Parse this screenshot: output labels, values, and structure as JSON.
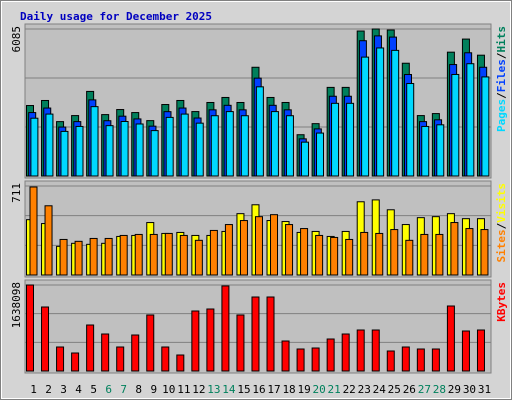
{
  "chart_data": [
    {
      "type": "bar",
      "title": "Daily usage for December 2025",
      "legend_separator": "/",
      "ylim": [
        0,
        6085
      ],
      "yticks": [
        6085
      ],
      "grid": true,
      "series": [
        {
          "name": "Hits",
          "color": "#00805c",
          "values": [
            2917,
            3126,
            2251,
            2501,
            3501,
            2542,
            2751,
            2626,
            2292,
            2959,
            3126,
            2667,
            3043,
            3251,
            3043,
            4501,
            3251,
            3043,
            1709,
            2167,
            3668,
            3668,
            6001,
            6085,
            6043,
            4668,
            2501,
            2584,
            5126,
            5668,
            5001
          ]
        },
        {
          "name": "Files",
          "color": "#0040ff",
          "values": [
            2626,
            2813,
            2026,
            2251,
            3151,
            2288,
            2476,
            2363,
            2063,
            2663,
            2813,
            2400,
            2739,
            2926,
            2739,
            4051,
            2926,
            2739,
            1538,
            1950,
            3301,
            3301,
            5600,
            5800,
            5750,
            4201,
            2251,
            2326,
            4613,
            5101,
            4501
          ]
        },
        {
          "name": "Pages",
          "color": "#00d8ff",
          "values": [
            2392,
            2563,
            1846,
            2051,
            2871,
            2084,
            2256,
            2153,
            1879,
            2426,
            2563,
            2187,
            2495,
            2666,
            2495,
            3691,
            2666,
            2495,
            1401,
            1777,
            3008,
            3008,
            4921,
            5300,
            5200,
            3828,
            2051,
            2119,
            4203,
            4648,
            4101
          ]
        }
      ]
    },
    {
      "type": "bar",
      "ylim": [
        0,
        711
      ],
      "yticks": [
        711
      ],
      "grid": true,
      "series": [
        {
          "name": "Visits",
          "color": "#ffff00",
          "values": [
            442,
            411,
            229,
            253,
            245,
            253,
            308,
            316,
            419,
            332,
            340,
            316,
            316,
            348,
            490,
            561,
            435,
            427,
            340,
            348,
            308,
            348,
            585,
            600,
            521,
            403,
            458,
            466,
            490,
            450,
            450
          ]
        },
        {
          "name": "Sites",
          "color": "#ff8000",
          "values": [
            703,
            553,
            284,
            269,
            292,
            292,
            316,
            324,
            324,
            332,
            316,
            277,
            356,
            403,
            435,
            466,
            482,
            403,
            371,
            316,
            300,
            284,
            340,
            332,
            363,
            277,
            324,
            324,
            419,
            371,
            363
          ]
        }
      ]
    },
    {
      "type": "bar",
      "ylim": [
        0,
        1638098
      ],
      "yticks": [
        1638098
      ],
      "grid": true,
      "series": [
        {
          "name": "KBytes",
          "color": "#ff0000",
          "values": [
            1638098,
            1219072,
            457152,
            342864,
            876208,
            704776,
            457152,
            685728,
            1066688,
            457152,
            304768,
            1142880,
            1180976,
            1620000,
            1066688,
            1409552,
            1409552,
            571440,
            419056,
            438104,
            609536,
            704776,
            780968,
            780968,
            380960,
            457152,
            419056,
            419056,
            1238120,
            761920,
            780968
          ]
        }
      ],
      "categories": [
        "1",
        "2",
        "3",
        "4",
        "5",
        "6",
        "7",
        "8",
        "9",
        "10",
        "11",
        "12",
        "13",
        "14",
        "15",
        "16",
        "17",
        "18",
        "19",
        "20",
        "21",
        "22",
        "23",
        "24",
        "25",
        "26",
        "27",
        "28",
        "29",
        "30",
        "31"
      ],
      "category_colors": [
        "#000000",
        "#000000",
        "#000000",
        "#000000",
        "#000000",
        "#00805c",
        "#00805c",
        "#000000",
        "#000000",
        "#000000",
        "#000000",
        "#000000",
        "#00805c",
        "#00805c",
        "#000000",
        "#000000",
        "#000000",
        "#000000",
        "#000000",
        "#00805c",
        "#00805c",
        "#000000",
        "#000000",
        "#000000",
        "#000000",
        "#000000",
        "#00805c",
        "#00805c",
        "#000000",
        "#000000",
        "#000000"
      ]
    }
  ]
}
